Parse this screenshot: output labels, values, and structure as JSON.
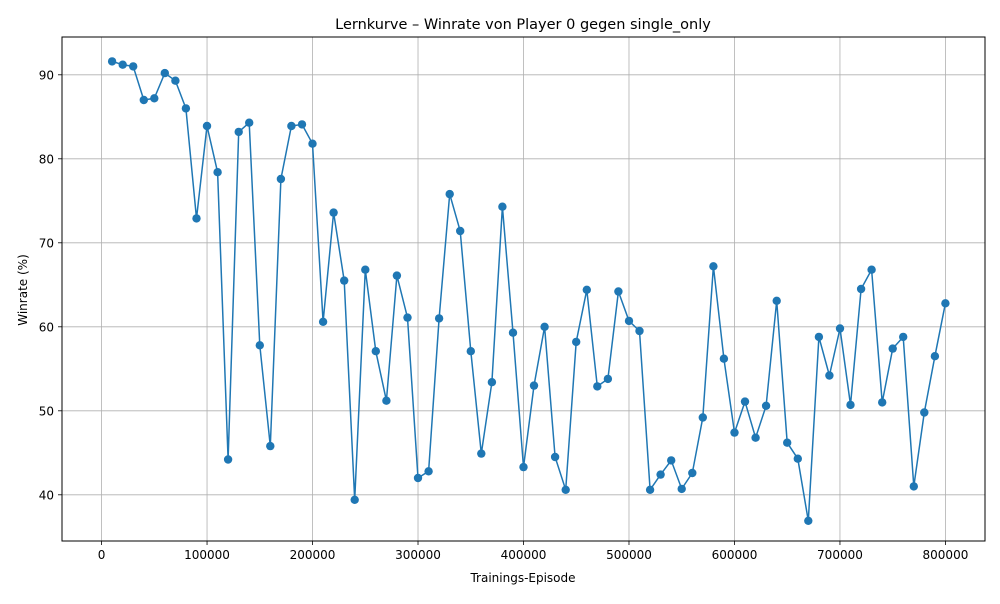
{
  "chart_data": {
    "type": "line",
    "title": "Lernkurve – Winrate von Player 0 gegen single_only",
    "xlabel": "Trainings-Episode",
    "ylabel": "Winrate (%)",
    "xlim": [
      -37500,
      837500
    ],
    "ylim": [
      34.5,
      94.5
    ],
    "xticks": [
      0,
      100000,
      200000,
      300000,
      400000,
      500000,
      600000,
      700000,
      800000
    ],
    "xtick_labels": [
      "0",
      "100000",
      "200000",
      "300000",
      "400000",
      "500000",
      "600000",
      "700000",
      "800000"
    ],
    "yticks": [
      40,
      50,
      60,
      70,
      80,
      90
    ],
    "ytick_labels": [
      "40",
      "50",
      "60",
      "70",
      "80",
      "90"
    ],
    "grid": true,
    "line_color": "#1f77b4",
    "x": [
      10000,
      20000,
      30000,
      40000,
      50000,
      60000,
      70000,
      80000,
      90000,
      100000,
      110000,
      120000,
      130000,
      140000,
      150000,
      160000,
      170000,
      180000,
      190000,
      200000,
      210000,
      220000,
      230000,
      240000,
      250000,
      260000,
      270000,
      280000,
      290000,
      300000,
      310000,
      320000,
      330000,
      340000,
      350000,
      360000,
      370000,
      380000,
      390000,
      400000,
      410000,
      420000,
      430000,
      440000,
      450000,
      460000,
      470000,
      480000,
      490000,
      500000,
      510000,
      520000,
      530000,
      540000,
      550000,
      560000,
      570000,
      580000,
      590000,
      600000,
      610000,
      620000,
      630000,
      640000,
      650000,
      660000,
      670000,
      680000,
      690000,
      700000,
      710000,
      720000,
      730000,
      740000,
      750000,
      760000,
      770000,
      780000,
      790000,
      800000
    ],
    "y": [
      91.6,
      91.2,
      91.0,
      87.0,
      87.2,
      90.2,
      89.3,
      86.0,
      72.9,
      83.9,
      78.4,
      44.2,
      83.2,
      84.3,
      57.8,
      45.8,
      77.6,
      83.9,
      84.1,
      81.8,
      60.6,
      73.6,
      65.5,
      39.4,
      66.8,
      57.1,
      51.2,
      66.1,
      61.1,
      42.0,
      42.8,
      61.0,
      75.8,
      71.4,
      57.1,
      44.9,
      53.4,
      74.3,
      59.3,
      43.3,
      53.0,
      60.0,
      44.5,
      40.6,
      58.2,
      64.4,
      52.9,
      53.8,
      64.2,
      60.7,
      59.5,
      40.6,
      42.4,
      44.1,
      40.7,
      42.6,
      49.2,
      67.2,
      56.2,
      47.4,
      51.1,
      46.8,
      50.6,
      63.1,
      46.2,
      44.3,
      36.9,
      58.8,
      54.2,
      59.8,
      50.7,
      64.5,
      66.8,
      51.0,
      57.4,
      58.8,
      41.0,
      49.8,
      56.5,
      62.8
    ]
  }
}
